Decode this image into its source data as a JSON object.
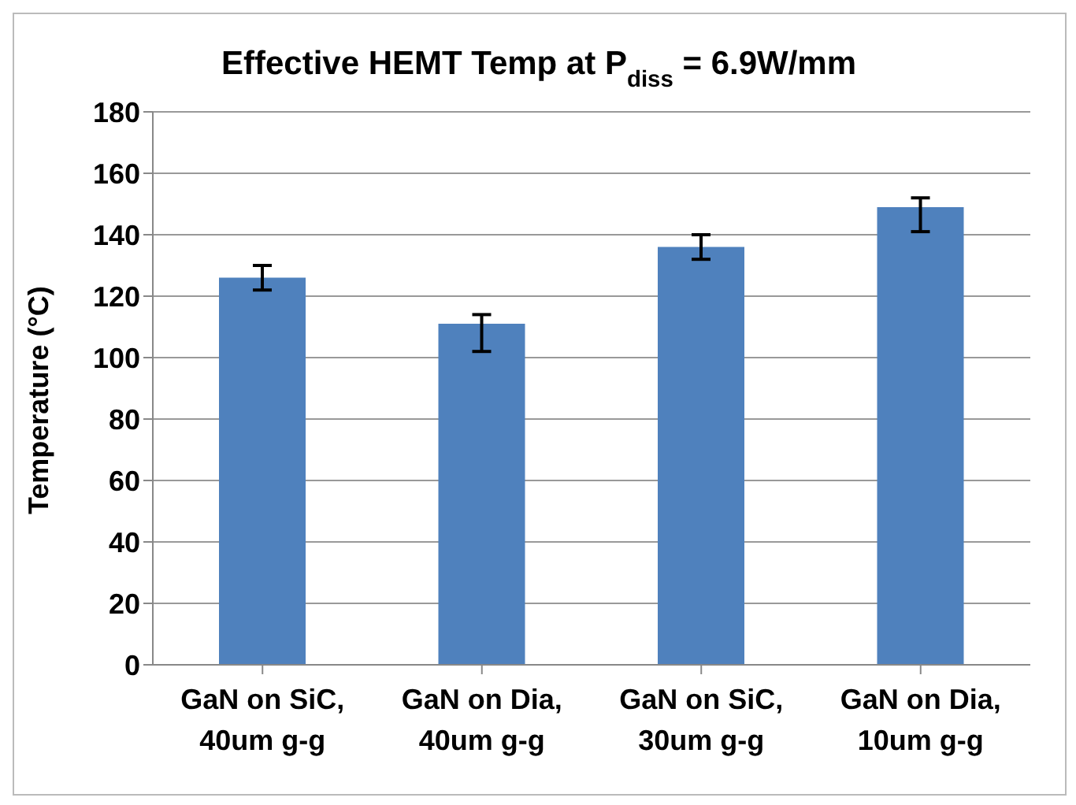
{
  "chart_data": {
    "type": "bar",
    "title": "Effective HEMT Temp at P$_{diss}$ = 6.9W/mm",
    "ylabel": "Temperature (°C)",
    "categories": [
      "GaN on SiC, 40um g-g",
      "GaN on Dia, 40um g-g",
      "GaN on SiC, 30um g-g",
      "GaN on Dia, 10um g-g"
    ],
    "values": [
      126,
      111,
      136,
      149
    ],
    "errors": [
      4,
      [
        102,
        114
      ],
      4,
      [
        141,
        152
      ]
    ],
    "color": "#4f81bd",
    "ylim": [
      0,
      180
    ],
    "yticks": [
      0,
      20,
      40,
      60,
      80,
      100,
      120,
      140,
      160,
      180
    ],
    "grid": "y"
  }
}
